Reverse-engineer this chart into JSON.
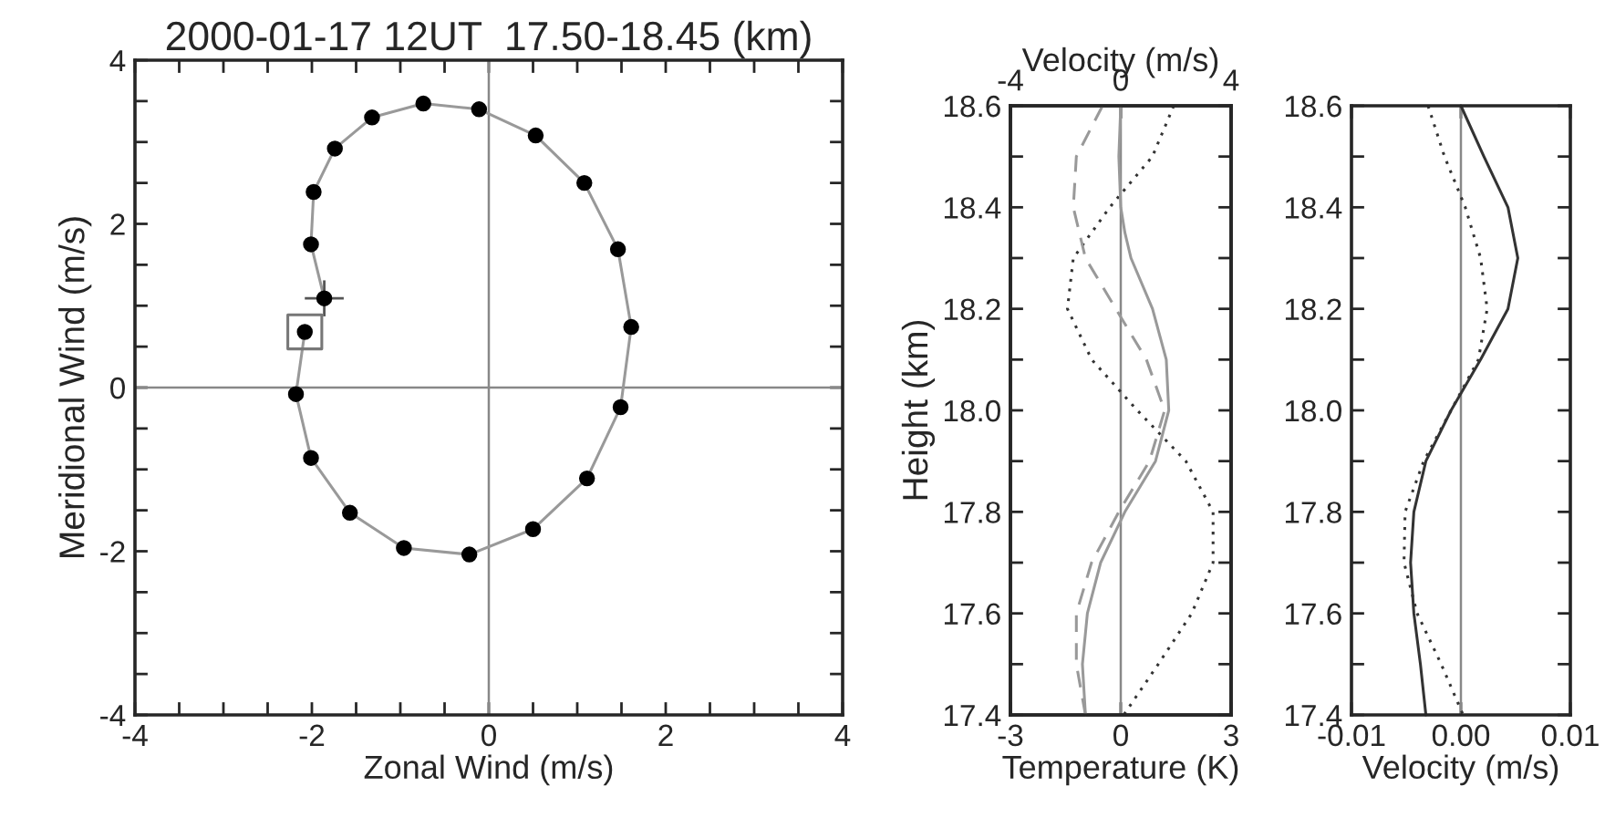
{
  "chart_data": [
    {
      "type": "line",
      "title": "2000-01-17 12UT  17.50-18.45 (km)",
      "xlabel": "Zonal Wind (m/s)",
      "ylabel": "Meridional Wind (m/s)",
      "xlim": [
        -4,
        4
      ],
      "ylim": [
        -4,
        4
      ],
      "xticks": [
        -4,
        {
          "value": -3.5,
          "label": null
        },
        {
          "value": -3,
          "label": null
        },
        {
          "value": -2.5,
          "label": null
        },
        -2,
        {
          "value": -1.5,
          "label": null
        },
        {
          "value": -1,
          "label": null
        },
        {
          "value": -0.5,
          "label": null
        },
        0,
        {
          "value": 0.5,
          "label": null
        },
        {
          "value": 1,
          "label": null
        },
        {
          "value": 1.5,
          "label": null
        },
        2,
        {
          "value": 2.5,
          "label": null
        },
        {
          "value": 3,
          "label": null
        },
        {
          "value": 3.5,
          "label": null
        },
        4
      ],
      "yticks": [
        -4,
        {
          "value": -3.5,
          "label": null
        },
        {
          "value": -3,
          "label": null
        },
        {
          "value": -2.5,
          "label": null
        },
        -2,
        {
          "value": -1.5,
          "label": null
        },
        {
          "value": -1,
          "label": null
        },
        {
          "value": -0.5,
          "label": null
        },
        0,
        {
          "value": 0.5,
          "label": null
        },
        {
          "value": 1,
          "label": null
        },
        {
          "value": 1.5,
          "label": null
        },
        2,
        {
          "value": 2.5,
          "label": null
        },
        {
          "value": 3,
          "label": null
        },
        {
          "value": 3.5,
          "label": null
        },
        4
      ],
      "grid": false,
      "legend": false,
      "ref_lines": [
        {
          "axis": "x",
          "value": 0,
          "color": "#888888"
        },
        {
          "axis": "y",
          "value": 0,
          "color": "#888888"
        }
      ],
      "series": [
        {
          "type": "line",
          "color": "#999999",
          "marker": "none",
          "x": [
            -2.08,
            -2.18,
            -2.01,
            -1.57,
            -0.96,
            -0.22,
            0.5,
            1.11,
            1.49,
            1.61,
            1.46,
            1.08,
            0.53,
            -0.11,
            -0.74,
            -1.32,
            -1.74,
            -1.98,
            -2.01,
            -1.86
          ],
          "values": [
            0.68,
            -0.08,
            -0.86,
            -1.53,
            -1.96,
            -2.04,
            -1.73,
            -1.11,
            -0.24,
            0.74,
            1.69,
            2.5,
            3.08,
            3.4,
            3.47,
            3.3,
            2.92,
            2.39,
            1.75,
            1.09
          ]
        },
        {
          "type": "scatter",
          "color": "#000000",
          "marker": "circle",
          "x": [
            -2.08,
            -2.18,
            -2.01,
            -1.57,
            -0.96,
            -0.22,
            0.5,
            1.11,
            1.49,
            1.61,
            1.46,
            1.08,
            0.53,
            -0.11,
            -0.74,
            -1.32,
            -1.74,
            -1.98,
            -2.01,
            -1.86
          ],
          "values": [
            0.68,
            -0.08,
            -0.86,
            -1.53,
            -1.96,
            -2.04,
            -1.73,
            -1.11,
            -0.24,
            0.74,
            1.69,
            2.5,
            3.08,
            3.4,
            3.47,
            3.3,
            2.92,
            2.39,
            1.75,
            1.09
          ],
          "errors": [
            null,
            null,
            null,
            null,
            null,
            null,
            null,
            null,
            null,
            null,
            null,
            null,
            null,
            null,
            null,
            null,
            null,
            null,
            null,
            0.22
          ],
          "xerrors": [
            null,
            null,
            null,
            null,
            null,
            null,
            null,
            null,
            null,
            null,
            null,
            null,
            null,
            null,
            null,
            null,
            null,
            null,
            null,
            0.22
          ]
        },
        {
          "type": "scatter",
          "color": "#777777",
          "marker": "square",
          "x": [
            -2.08
          ],
          "values": [
            0.68
          ]
        }
      ]
    },
    {
      "type": "line",
      "orientation": "horizontal",
      "xlabel": "Temperature (K)",
      "x2label": "Velocity (m/s)",
      "ylabel": "Height (km)",
      "xlim": [
        -3,
        3
      ],
      "xticks": [
        -3,
        0,
        3
      ],
      "x2lim": [
        -4,
        4
      ],
      "x2ticks": [
        -4,
        0,
        4
      ],
      "ylim": [
        17.4,
        18.6
      ],
      "yticks": [
        17.4,
        {
          "value": 17.5,
          "label": null
        },
        17.6,
        {
          "value": 17.7,
          "label": null
        },
        17.8,
        {
          "value": 17.9,
          "label": null
        },
        {
          "value": 18.0,
          "label": "18.0"
        },
        {
          "value": 18.1,
          "label": null
        },
        18.2,
        {
          "value": 18.3,
          "label": null
        },
        18.4,
        {
          "value": 18.5,
          "label": null
        },
        18.6
      ],
      "grid": false,
      "legend": false,
      "ref_lines": [
        {
          "axis": "x",
          "value": 0,
          "color": "#888888"
        }
      ],
      "series": [
        {
          "axis": "x2",
          "color": "#999999",
          "line_style": "solid",
          "x": [
            18.6,
            18.5,
            18.4,
            18.35,
            18.3,
            18.2,
            18.1,
            18.0,
            17.9,
            17.8,
            17.7,
            17.6,
            17.5,
            17.4
          ],
          "values": [
            0,
            -0.07,
            0,
            0.15,
            0.37,
            1.15,
            1.65,
            1.74,
            1.26,
            0.15,
            -0.73,
            -1.21,
            -1.39,
            -1.28
          ]
        },
        {
          "axis": "x2",
          "color": "#999999",
          "line_style": "dashed",
          "x": [
            18.6,
            18.5,
            18.4,
            18.3,
            18.2,
            18.1,
            18.0,
            17.9,
            17.8,
            17.7,
            17.6,
            17.5,
            17.4
          ],
          "values": [
            -0.66,
            -1.61,
            -1.72,
            -1.28,
            -0.18,
            0.93,
            1.59,
            1.04,
            -0.07,
            -1.06,
            -1.61,
            -1.61,
            -1.28
          ]
        },
        {
          "color": "#333333",
          "line_style": "dotted",
          "x": [
            18.6,
            18.5,
            18.4,
            18.3,
            18.2,
            18.1,
            18.0,
            17.9,
            17.8,
            17.7,
            17.6,
            17.5,
            17.4
          ],
          "values": [
            1.44,
            0.86,
            -0.3,
            -1.29,
            -1.45,
            -0.79,
            0.45,
            1.77,
            2.51,
            2.51,
            1.93,
            1.02,
            0.08
          ]
        }
      ]
    },
    {
      "type": "line",
      "orientation": "horizontal",
      "xlabel": "Velocity (m/s)",
      "xlim": [
        -0.01,
        0.01
      ],
      "xticks": [
        {
          "value": -0.01,
          "label": "-0.01"
        },
        {
          "value": 0,
          "label": "0.00"
        },
        {
          "value": 0.01,
          "label": "0.01"
        }
      ],
      "ylim": [
        17.4,
        18.6
      ],
      "yticks": [
        17.4,
        {
          "value": 17.5,
          "label": null
        },
        17.6,
        {
          "value": 17.7,
          "label": null
        },
        17.8,
        {
          "value": 17.9,
          "label": null
        },
        {
          "value": 18.0,
          "label": "18.0"
        },
        {
          "value": 18.1,
          "label": null
        },
        18.2,
        {
          "value": 18.3,
          "label": null
        },
        18.4,
        {
          "value": 18.5,
          "label": null
        },
        18.6
      ],
      "grid": false,
      "legend": false,
      "ref_lines": [
        {
          "axis": "x",
          "value": 0,
          "color": "#888888"
        }
      ],
      "series": [
        {
          "color": "#333333",
          "line_style": "solid",
          "x": [
            18.6,
            18.5,
            18.4,
            18.3,
            18.2,
            18.1,
            18.0,
            17.9,
            17.8,
            17.7,
            17.6,
            17.5,
            17.4
          ],
          "values": [
            0,
            0.0021,
            0.0043,
            0.0052,
            0.0043,
            0.0018,
            -0.0009,
            -0.0032,
            -0.0043,
            -0.0046,
            -0.0043,
            -0.0037,
            -0.0032
          ]
        },
        {
          "color": "#333333",
          "line_style": "dotted",
          "x": [
            18.6,
            18.5,
            18.4,
            18.3,
            18.2,
            18.1,
            18.0,
            17.9,
            17.8,
            17.7,
            17.6,
            17.5,
            17.4
          ],
          "values": [
            -0.003,
            -0.0015,
            0.0004,
            0.0018,
            0.0024,
            0.0016,
            -0.0009,
            -0.0034,
            -0.0051,
            -0.0052,
            -0.004,
            -0.0018,
            0.0002
          ]
        }
      ]
    }
  ]
}
